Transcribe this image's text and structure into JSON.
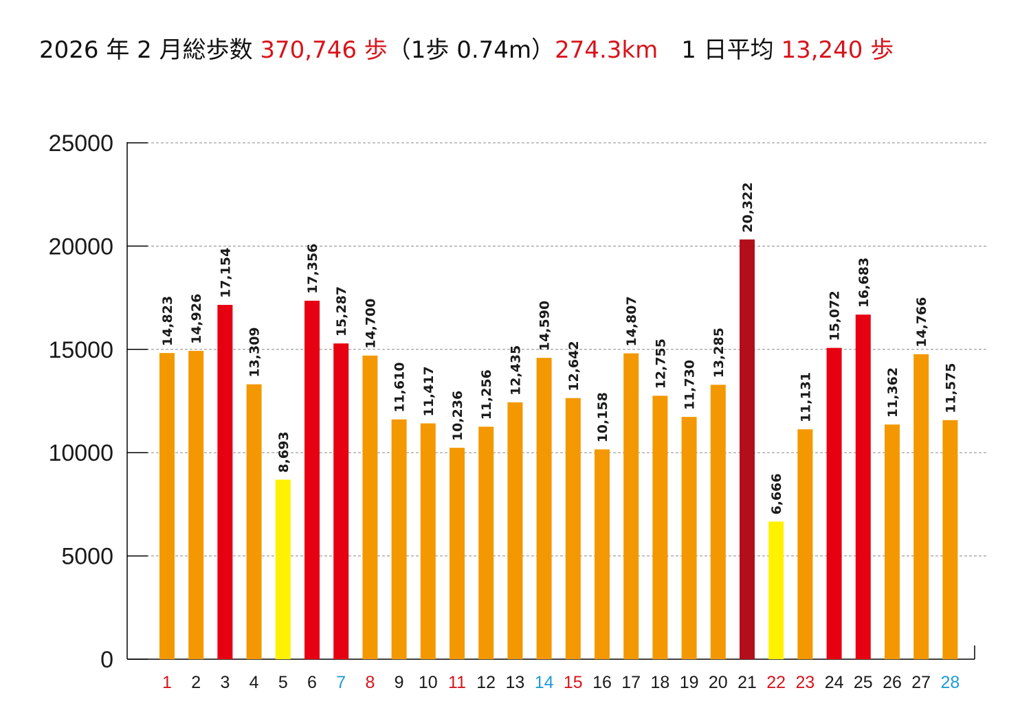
{
  "title": {
    "prefix": "2026 年 2 月総歩数 ",
    "total": "370,746 歩",
    "note": "（1歩 0.74m）",
    "distance": "274.3km",
    "avg_label": "　1 日平均 ",
    "average": "13,240 歩"
  },
  "colors": {
    "orange": "#f39800",
    "red": "#e60012",
    "darkred": "#b20f1b",
    "yellow": "#fff100",
    "label_black": "#1a1a1a",
    "label_red": "#d7141c",
    "label_blue": "#1e9bd7",
    "grid": "#888888"
  },
  "chart_data": {
    "type": "bar",
    "title": "2026 年 2 月総歩数 370,746 歩（1歩 0.74m）274.3km　1 日平均 13,240 歩",
    "xlabel": "",
    "ylabel": "",
    "ylim": [
      0,
      25000
    ],
    "yticks": [
      0,
      5000,
      10000,
      15000,
      20000,
      25000
    ],
    "grid": true,
    "categories": [
      "1",
      "2",
      "3",
      "4",
      "5",
      "6",
      "7",
      "8",
      "9",
      "10",
      "11",
      "12",
      "13",
      "14",
      "15",
      "16",
      "17",
      "18",
      "19",
      "20",
      "21",
      "22",
      "23",
      "24",
      "25",
      "26",
      "27",
      "28"
    ],
    "values": [
      14823,
      14926,
      17154,
      13309,
      8693,
      17356,
      15287,
      14700,
      11610,
      11417,
      10236,
      11256,
      12435,
      14590,
      12642,
      10158,
      14807,
      12755,
      11730,
      13285,
      20322,
      6666,
      11131,
      15072,
      16683,
      11362,
      14766,
      11575
    ],
    "value_labels": [
      "14,823",
      "14,926",
      "17,154",
      "13,309",
      "8,693",
      "17,356",
      "15,287",
      "14,700",
      "11,610",
      "11,417",
      "10,236",
      "11,256",
      "12,435",
      "14,590",
      "12,642",
      "10,158",
      "14,807",
      "12,755",
      "11,730",
      "13,285",
      "20,322",
      "6,666",
      "11,131",
      "15,072",
      "16,683",
      "11,362",
      "14,766",
      "11,575"
    ],
    "bar_colors": [
      "orange",
      "orange",
      "red",
      "orange",
      "yellow",
      "red",
      "red",
      "orange",
      "orange",
      "orange",
      "orange",
      "orange",
      "orange",
      "orange",
      "orange",
      "orange",
      "orange",
      "orange",
      "orange",
      "orange",
      "darkred",
      "yellow",
      "orange",
      "red",
      "red",
      "orange",
      "orange",
      "orange"
    ],
    "label_colors": [
      "red",
      "black",
      "black",
      "black",
      "black",
      "black",
      "blue",
      "red",
      "black",
      "black",
      "red",
      "black",
      "black",
      "blue",
      "red",
      "black",
      "black",
      "black",
      "black",
      "black",
      "black",
      "red",
      "red",
      "black",
      "black",
      "black",
      "black",
      "blue"
    ]
  }
}
